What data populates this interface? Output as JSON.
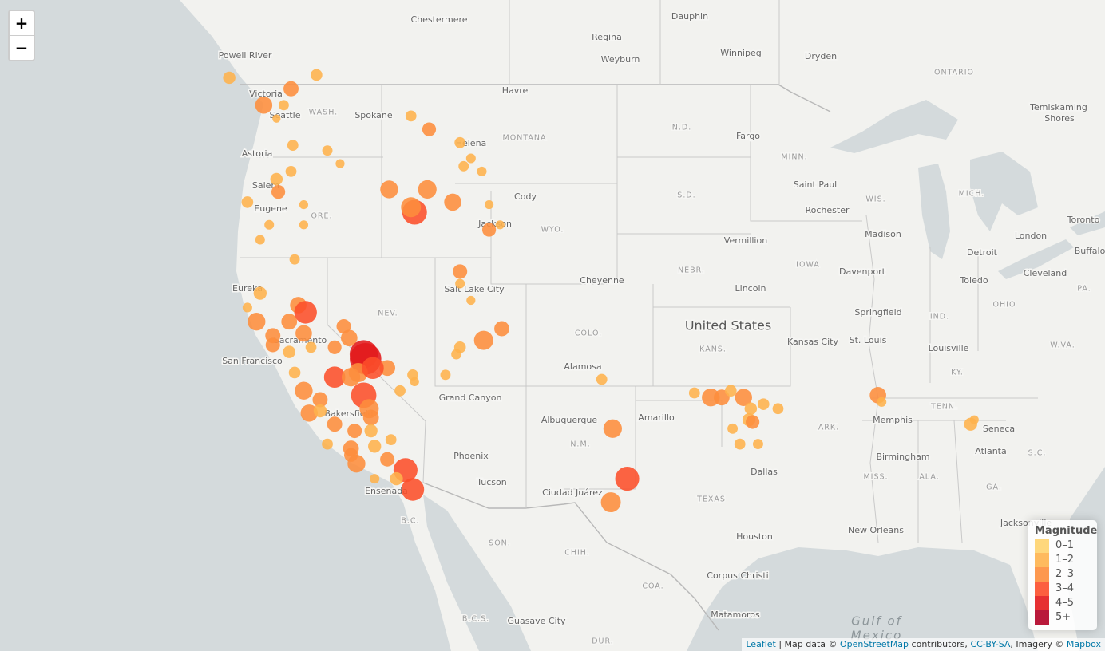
{
  "map": {
    "places": [
      "Chestermere",
      "Dauphin",
      "Regina",
      "Weyburn",
      "Winnipeg",
      "Dryden",
      "ONTARIO",
      "Powell River",
      "Victoria",
      "Seattle",
      "WASH.",
      "Spokane",
      "Havre",
      "MONTANA",
      "Helena",
      "N.D.",
      "Fargo",
      "Temiskaming",
      "Shores",
      "Astoria",
      "MINN.",
      "Salem",
      "Eugene",
      "ORE.",
      "Cody",
      "S.D.",
      "Saint Paul",
      "WIS.",
      "MICH.",
      "Rochester",
      "Jackson",
      "WYO.",
      "Madison",
      "Toronto",
      "London",
      "Buffalo",
      "Detroit",
      "Vermillion",
      "IOWA",
      "Davenport",
      "Toledo",
      "Cleveland",
      "PA.",
      "Cheyenne",
      "NEBR.",
      "Lincoln",
      "Salt Lake City",
      "Eureka",
      "NEV.",
      "OHIO",
      "Springfield",
      "IND.",
      "COLO.",
      "United States",
      "Sacramento",
      "Kansas City",
      "St. Louis",
      "Louisville",
      "W.VA.",
      "KANS.",
      "San Francisco",
      "KY.",
      "Alamosa",
      "Grand Canyon",
      "TENN.",
      "Bakersfield",
      "Albuquerque",
      "Amarillo",
      "Memphis",
      "ARK.",
      "Seneca",
      "N.M.",
      "S.C.",
      "Atlanta",
      "Phoenix",
      "Birmingham",
      "Dallas",
      "MISS.",
      "ALA.",
      "GA.",
      "Tucson",
      "Ensenada",
      "Ciudad Juárez",
      "TEXAS",
      "B.C.",
      "Jacksonville",
      "New Orleans",
      "Houston",
      "SON.",
      "CHIH.",
      "Corpus Christi",
      "COA.",
      "Matamoros",
      "B.C.S.",
      "Guasave City",
      "DUR.",
      "Gulf of",
      "Mexico"
    ],
    "quakes": [
      {
        "lon": -125.4,
        "lat": 49.0,
        "mag": 1.8
      },
      {
        "lon": -120.6,
        "lat": 49.1,
        "mag": 1.7
      },
      {
        "lon": -122.0,
        "lat": 48.6,
        "mag": 2.2
      },
      {
        "lon": -123.5,
        "lat": 48.0,
        "mag": 2.5
      },
      {
        "lon": -122.4,
        "lat": 48.0,
        "mag": 1.5
      },
      {
        "lon": -122.8,
        "lat": 47.5,
        "mag": 1.2
      },
      {
        "lon": -121.9,
        "lat": 46.5,
        "mag": 1.6
      },
      {
        "lon": -120.0,
        "lat": 46.3,
        "mag": 1.5
      },
      {
        "lon": -122.0,
        "lat": 45.5,
        "mag": 1.6
      },
      {
        "lon": -122.8,
        "lat": 45.2,
        "mag": 1.8
      },
      {
        "lon": -122.7,
        "lat": 44.7,
        "mag": 2.0
      },
      {
        "lon": -124.4,
        "lat": 44.3,
        "mag": 1.7
      },
      {
        "lon": -121.3,
        "lat": 44.2,
        "mag": 1.3
      },
      {
        "lon": -123.2,
        "lat": 43.4,
        "mag": 1.4
      },
      {
        "lon": -121.3,
        "lat": 43.4,
        "mag": 1.3
      },
      {
        "lon": -123.7,
        "lat": 42.8,
        "mag": 1.4
      },
      {
        "lon": -121.8,
        "lat": 42.0,
        "mag": 1.5
      },
      {
        "lon": -119.3,
        "lat": 45.8,
        "mag": 1.3
      },
      {
        "lon": -115.4,
        "lat": 47.6,
        "mag": 1.6
      },
      {
        "lon": -114.4,
        "lat": 47.1,
        "mag": 2.0
      },
      {
        "lon": -112.7,
        "lat": 46.6,
        "mag": 1.6
      },
      {
        "lon": -112.1,
        "lat": 46.0,
        "mag": 1.4
      },
      {
        "lon": -112.5,
        "lat": 45.7,
        "mag": 1.5
      },
      {
        "lon": -111.5,
        "lat": 45.5,
        "mag": 1.4
      },
      {
        "lon": -116.6,
        "lat": 44.8,
        "mag": 2.6
      },
      {
        "lon": -114.5,
        "lat": 44.8,
        "mag": 2.7
      },
      {
        "lon": -113.1,
        "lat": 44.3,
        "mag": 2.5
      },
      {
        "lon": -115.2,
        "lat": 43.9,
        "mag": 3.6
      },
      {
        "lon": -115.4,
        "lat": 44.1,
        "mag": 2.9
      },
      {
        "lon": -111.1,
        "lat": 44.2,
        "mag": 1.3
      },
      {
        "lon": -111.1,
        "lat": 43.2,
        "mag": 2.0
      },
      {
        "lon": -110.5,
        "lat": 43.4,
        "mag": 1.3
      },
      {
        "lon": -112.7,
        "lat": 41.5,
        "mag": 2.1
      },
      {
        "lon": -112.7,
        "lat": 41.0,
        "mag": 1.4
      },
      {
        "lon": -112.1,
        "lat": 40.3,
        "mag": 1.3
      },
      {
        "lon": -111.4,
        "lat": 38.6,
        "mag": 2.8
      },
      {
        "lon": -110.4,
        "lat": 39.1,
        "mag": 2.2
      },
      {
        "lon": -112.7,
        "lat": 38.3,
        "mag": 1.7
      },
      {
        "lon": -112.9,
        "lat": 38.0,
        "mag": 1.5
      },
      {
        "lon": -115.3,
        "lat": 37.1,
        "mag": 1.6
      },
      {
        "lon": -115.2,
        "lat": 36.8,
        "mag": 1.3
      },
      {
        "lon": -116.0,
        "lat": 36.4,
        "mag": 1.6
      },
      {
        "lon": -113.5,
        "lat": 37.1,
        "mag": 1.5
      },
      {
        "lon": -123.7,
        "lat": 40.6,
        "mag": 1.9
      },
      {
        "lon": -124.4,
        "lat": 40.0,
        "mag": 1.4
      },
      {
        "lon": -121.6,
        "lat": 40.1,
        "mag": 2.4
      },
      {
        "lon": -121.2,
        "lat": 39.8,
        "mag": 3.3
      },
      {
        "lon": -122.1,
        "lat": 39.4,
        "mag": 2.3
      },
      {
        "lon": -123.9,
        "lat": 39.4,
        "mag": 2.6
      },
      {
        "lon": -123.0,
        "lat": 38.8,
        "mag": 2.2
      },
      {
        "lon": -121.3,
        "lat": 38.9,
        "mag": 2.4
      },
      {
        "lon": -123.0,
        "lat": 38.4,
        "mag": 2.1
      },
      {
        "lon": -122.1,
        "lat": 38.1,
        "mag": 1.8
      },
      {
        "lon": -121.8,
        "lat": 37.2,
        "mag": 1.7
      },
      {
        "lon": -120.9,
        "lat": 38.3,
        "mag": 1.6
      },
      {
        "lon": -119.1,
        "lat": 39.2,
        "mag": 2.1
      },
      {
        "lon": -118.8,
        "lat": 38.7,
        "mag": 2.4
      },
      {
        "lon": -119.6,
        "lat": 38.3,
        "mag": 2.0
      },
      {
        "lon": -117.9,
        "lat": 37.8,
        "mag": 4.6
      },
      {
        "lon": -118.0,
        "lat": 38.0,
        "mag": 4.1
      },
      {
        "lon": -118.3,
        "lat": 37.2,
        "mag": 2.8
      },
      {
        "lon": -116.7,
        "lat": 37.4,
        "mag": 2.3
      },
      {
        "lon": -117.5,
        "lat": 37.4,
        "mag": 3.2
      },
      {
        "lon": -119.6,
        "lat": 37.0,
        "mag": 3.1
      },
      {
        "lon": -118.7,
        "lat": 37.0,
        "mag": 2.7
      },
      {
        "lon": -121.3,
        "lat": 36.4,
        "mag": 2.6
      },
      {
        "lon": -120.4,
        "lat": 36.0,
        "mag": 2.2
      },
      {
        "lon": -118.0,
        "lat": 36.2,
        "mag": 3.7
      },
      {
        "lon": -117.7,
        "lat": 35.6,
        "mag": 2.8
      },
      {
        "lon": -117.6,
        "lat": 35.2,
        "mag": 2.3
      },
      {
        "lon": -121.0,
        "lat": 35.4,
        "mag": 2.5
      },
      {
        "lon": -120.4,
        "lat": 35.5,
        "mag": 1.9
      },
      {
        "lon": -119.6,
        "lat": 34.9,
        "mag": 2.2
      },
      {
        "lon": -118.5,
        "lat": 34.6,
        "mag": 2.1
      },
      {
        "lon": -117.6,
        "lat": 34.6,
        "mag": 1.9
      },
      {
        "lon": -120.0,
        "lat": 34.0,
        "mag": 1.6
      },
      {
        "lon": -118.7,
        "lat": 33.8,
        "mag": 2.3
      },
      {
        "lon": -117.4,
        "lat": 33.9,
        "mag": 1.9
      },
      {
        "lon": -116.5,
        "lat": 34.2,
        "mag": 1.6
      },
      {
        "lon": -118.7,
        "lat": 33.5,
        "mag": 2.0
      },
      {
        "lon": -118.4,
        "lat": 33.1,
        "mag": 2.6
      },
      {
        "lon": -116.7,
        "lat": 33.3,
        "mag": 2.1
      },
      {
        "lon": -115.7,
        "lat": 32.8,
        "mag": 3.5
      },
      {
        "lon": -116.2,
        "lat": 32.4,
        "mag": 1.9
      },
      {
        "lon": -115.3,
        "lat": 31.9,
        "mag": 3.3
      },
      {
        "lon": -117.4,
        "lat": 32.4,
        "mag": 1.4
      },
      {
        "lon": -104.9,
        "lat": 36.9,
        "mag": 1.6
      },
      {
        "lon": -104.3,
        "lat": 34.7,
        "mag": 2.7
      },
      {
        "lon": -103.5,
        "lat": 32.4,
        "mag": 3.5
      },
      {
        "lon": -104.4,
        "lat": 31.3,
        "mag": 2.9
      },
      {
        "lon": -99.8,
        "lat": 36.3,
        "mag": 1.6
      },
      {
        "lon": -98.9,
        "lat": 36.1,
        "mag": 2.6
      },
      {
        "lon": -98.3,
        "lat": 36.1,
        "mag": 2.3
      },
      {
        "lon": -97.8,
        "lat": 36.4,
        "mag": 1.7
      },
      {
        "lon": -97.1,
        "lat": 36.1,
        "mag": 2.5
      },
      {
        "lon": -96.0,
        "lat": 35.8,
        "mag": 1.7
      },
      {
        "lon": -95.2,
        "lat": 35.6,
        "mag": 1.6
      },
      {
        "lon": -96.7,
        "lat": 35.6,
        "mag": 1.8
      },
      {
        "lon": -96.8,
        "lat": 35.1,
        "mag": 1.9
      },
      {
        "lon": -96.6,
        "lat": 35.0,
        "mag": 2.0
      },
      {
        "lon": -97.7,
        "lat": 34.7,
        "mag": 1.5
      },
      {
        "lon": -97.3,
        "lat": 34.0,
        "mag": 1.6
      },
      {
        "lon": -96.3,
        "lat": 34.0,
        "mag": 1.5
      },
      {
        "lon": -89.7,
        "lat": 36.2,
        "mag": 2.4
      },
      {
        "lon": -89.5,
        "lat": 35.9,
        "mag": 1.4
      },
      {
        "lon": -84.6,
        "lat": 34.9,
        "mag": 1.9
      },
      {
        "lon": -84.4,
        "lat": 35.1,
        "mag": 1.3
      }
    ],
    "legend": {
      "title": "Magnitude",
      "items": [
        {
          "label": "0–1",
          "color": "#fed36e"
        },
        {
          "label": "1–2",
          "color": "#feb24c"
        },
        {
          "label": "2–3",
          "color": "#fd8d3c"
        },
        {
          "label": "3–4",
          "color": "#fc4e2a"
        },
        {
          "label": "4–5",
          "color": "#e31a1c"
        },
        {
          "label": "5+",
          "color": "#b10026"
        }
      ]
    }
  },
  "controls": {
    "zoom_in": "+",
    "zoom_out": "−"
  },
  "attribution": [
    {
      "text": "Leaflet",
      "link": true
    },
    {
      "text": " | Map data © ",
      "link": false
    },
    {
      "text": "OpenStreetMap",
      "link": true
    },
    {
      "text": " contributors, ",
      "link": false
    },
    {
      "text": "CC-BY-SA",
      "link": true
    },
    {
      "text": ", Imagery © ",
      "link": false
    },
    {
      "text": "Mapbox",
      "link": true
    }
  ]
}
